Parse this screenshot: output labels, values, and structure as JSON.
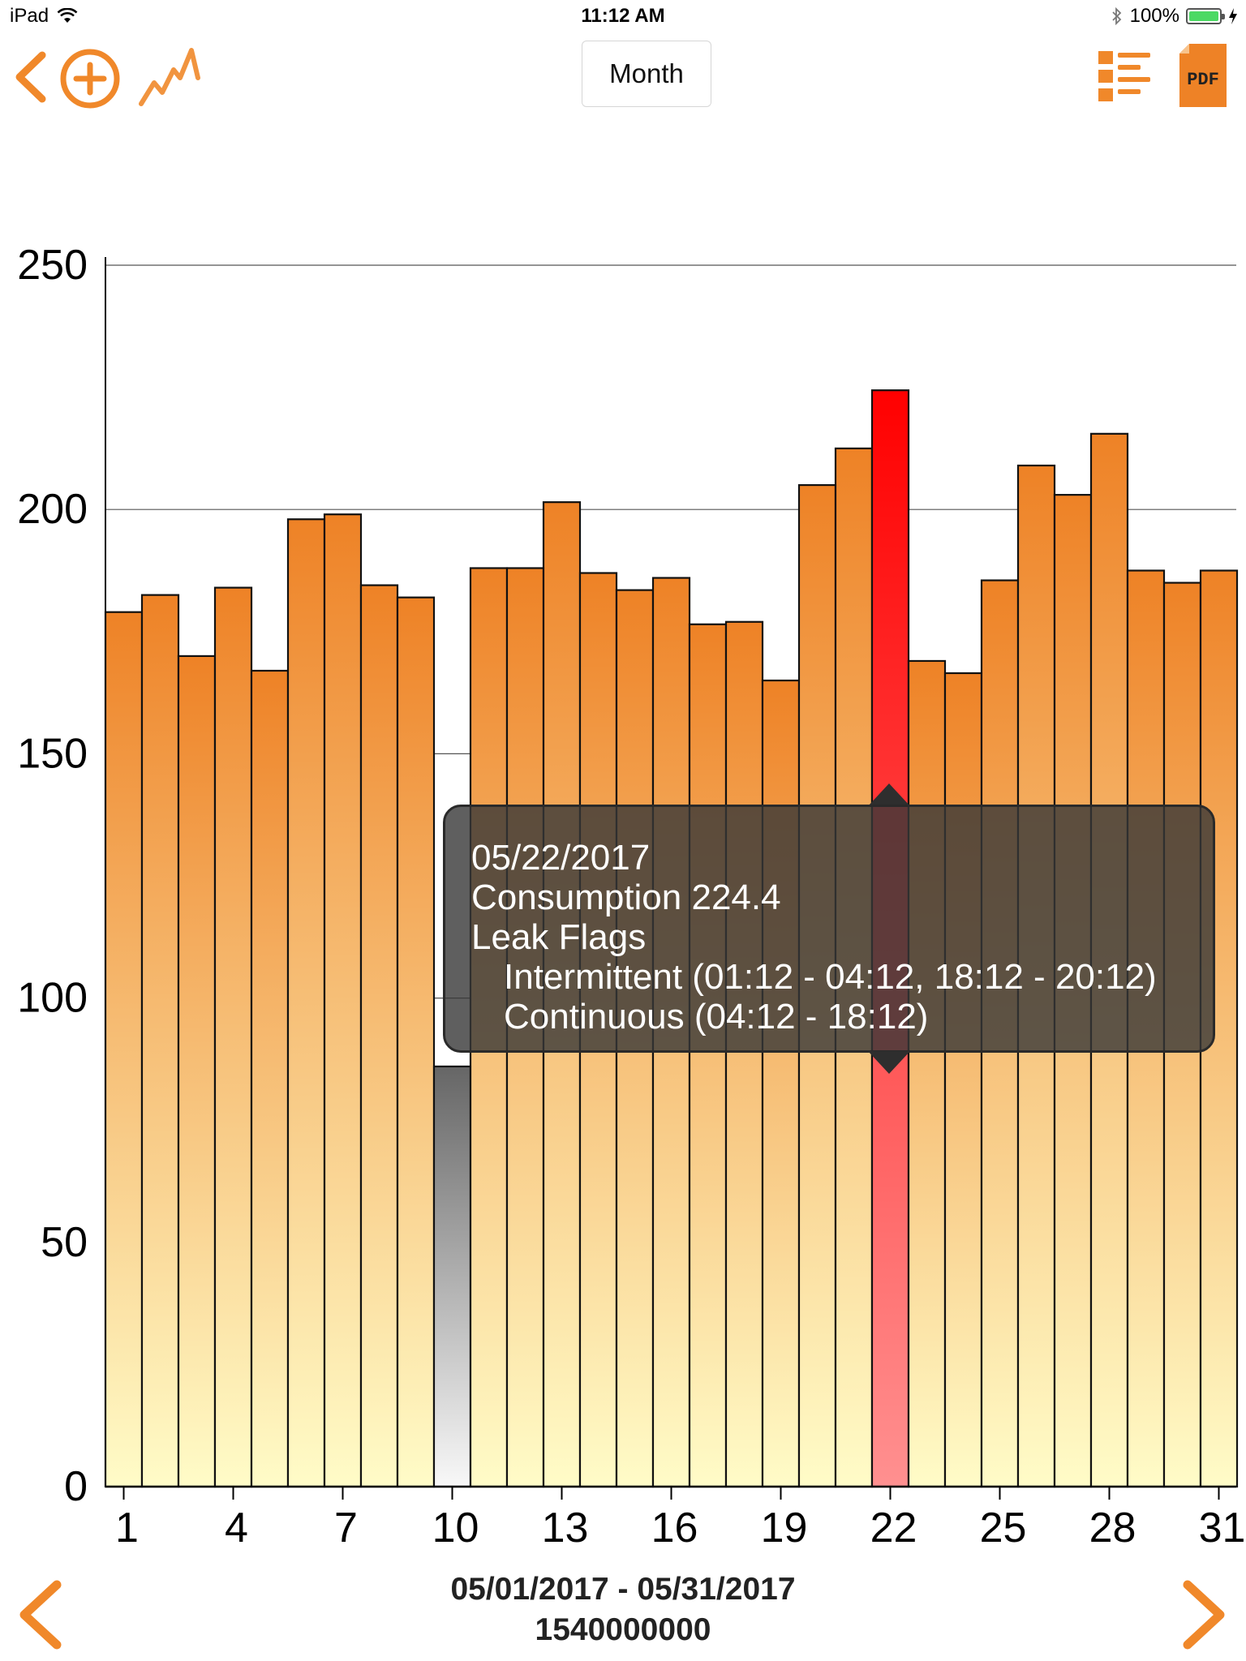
{
  "status_bar": {
    "device": "iPad",
    "time": "11:12 AM",
    "battery_percent": "100%",
    "battery_level": 1.0,
    "icons": [
      "wifi-icon",
      "bluetooth-icon",
      "battery-icon",
      "charging-icon"
    ]
  },
  "toolbar": {
    "back_icon": "chevron-left-icon",
    "add_icon": "plus-circle-icon",
    "graph_icon": "line-graph-icon",
    "period_label": "Month",
    "list_icon": "list-icon",
    "pdf_label": "PDF",
    "accent_color": "#f0882a"
  },
  "chart_data": {
    "type": "bar",
    "categories": [
      "1",
      "2",
      "3",
      "4",
      "5",
      "6",
      "7",
      "8",
      "9",
      "10",
      "11",
      "12",
      "13",
      "14",
      "15",
      "16",
      "17",
      "18",
      "19",
      "20",
      "21",
      "22",
      "23",
      "24",
      "25",
      "26",
      "27",
      "28",
      "29",
      "30",
      "31"
    ],
    "values": [
      179,
      182.5,
      170,
      184,
      167,
      198,
      199,
      184.5,
      182,
      86,
      188,
      188,
      201.5,
      187,
      183.5,
      186,
      176.5,
      177,
      165,
      205,
      212.5,
      224.4,
      169,
      166.5,
      185.5,
      209,
      203,
      215.5,
      187.5,
      185,
      187.5
    ],
    "x_tick_labels": [
      "1",
      "4",
      "7",
      "10",
      "13",
      "16",
      "19",
      "22",
      "25",
      "28",
      "31"
    ],
    "y_ticks": [
      0,
      50,
      100,
      150,
      200,
      250
    ],
    "ylim": [
      0,
      250
    ],
    "grid": true,
    "highlighted_index": 21,
    "missing_index": 9,
    "colors": {
      "bar_top": "#ee8226",
      "bar_bottom": "#fffcc8",
      "highlight_top": "#ff0000",
      "highlight_bottom": "#ff9090",
      "missing_top": "#666666",
      "missing_bottom": "#f8f8f8"
    }
  },
  "tooltip": {
    "date": "05/22/2017",
    "consumption": "Consumption 224.4",
    "leak_title": "Leak Flags",
    "intermittent": "Intermittent (01:12 - 04:12, 18:12 - 20:12)",
    "continuous": "Continuous (04:12 - 18:12)"
  },
  "footer": {
    "date_range": "05/01/2017 - 05/31/2017",
    "account": "1540000000",
    "prev_icon": "chevron-left-icon",
    "next_icon": "chevron-right-icon"
  }
}
